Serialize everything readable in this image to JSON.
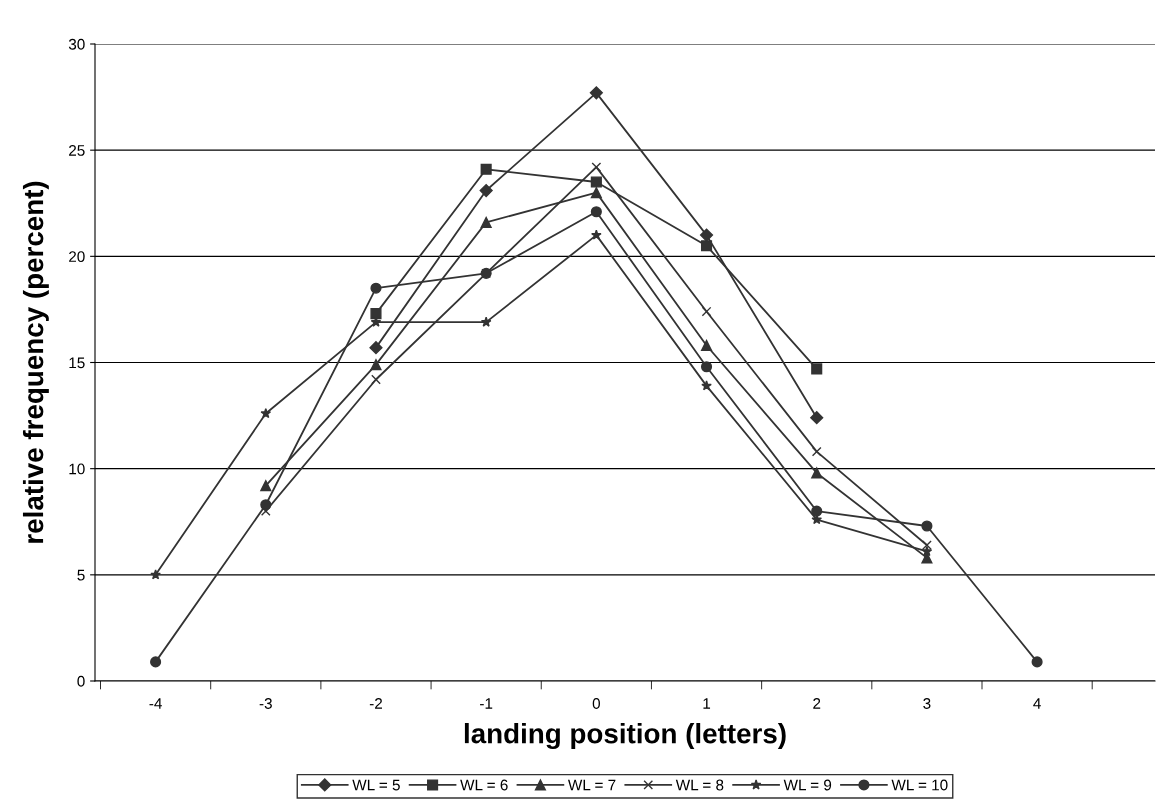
{
  "chart_data": {
    "type": "line",
    "xlabel": "landing position (letters)",
    "ylabel": "relative frequency (percent)",
    "categories": [
      "-4",
      "-3",
      "-2",
      "-1",
      "0",
      "1",
      "2",
      "3",
      "4"
    ],
    "ylim": [
      0,
      30
    ],
    "yticks": [
      0,
      5,
      10,
      15,
      20,
      25,
      30
    ],
    "grid": "y",
    "legend": "bottom",
    "line_style": "solid",
    "series": [
      {
        "name": "WL = 5",
        "color": "#333333",
        "marker": "diamond",
        "values": [
          null,
          null,
          15.7,
          23.1,
          27.7,
          21.0,
          12.4,
          null,
          null
        ]
      },
      {
        "name": "WL = 6",
        "color": "#333333",
        "marker": "square",
        "values": [
          null,
          null,
          17.3,
          24.1,
          23.5,
          20.5,
          14.7,
          null,
          null
        ]
      },
      {
        "name": "WL = 7",
        "color": "#333333",
        "marker": "triangle",
        "values": [
          null,
          9.2,
          14.9,
          21.6,
          23.0,
          15.8,
          9.8,
          5.8,
          null
        ]
      },
      {
        "name": "WL = 8",
        "color": "#333333",
        "marker": "cross",
        "values": [
          null,
          8.0,
          14.2,
          19.2,
          24.2,
          17.4,
          10.8,
          6.4,
          null
        ]
      },
      {
        "name": "WL = 9",
        "color": "#333333",
        "marker": "star",
        "values": [
          5.0,
          12.6,
          16.9,
          16.9,
          21.0,
          13.9,
          7.6,
          6.1,
          null
        ]
      },
      {
        "name": "WL = 10",
        "color": "#333333",
        "marker": "circle",
        "values": [
          0.9,
          8.3,
          18.5,
          19.2,
          22.1,
          14.8,
          8.0,
          7.3,
          0.9
        ]
      }
    ]
  }
}
